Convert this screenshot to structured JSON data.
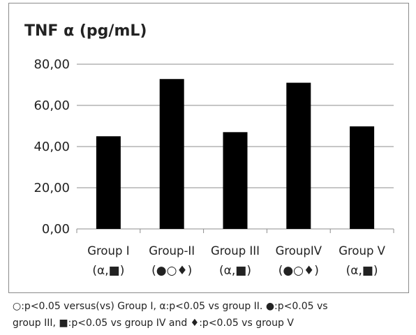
{
  "chart_data": {
    "type": "bar",
    "title": "TNF α (pg/mL)",
    "categories": [
      "Group I",
      "Group-II",
      "Group III",
      "GroupIV",
      "Group V"
    ],
    "significance": [
      "(α,■)",
      "(●○♦)",
      "(α,■)",
      "(●○♦)",
      "(α,■)"
    ],
    "values": [
      45.0,
      72.8,
      47.0,
      71.0,
      49.8
    ],
    "ylim": [
      0,
      80
    ],
    "yticks": [
      "0,00",
      "20,00",
      "40,00",
      "60,00",
      "80,00"
    ],
    "ytick_values": [
      0,
      20,
      40,
      60,
      80
    ],
    "grid": true,
    "bar_color": "#000000",
    "xlabel": "",
    "ylabel": ""
  },
  "caption": {
    "line1": "○:p<0.05 versus(vs) Group I, α:p<0.05 vs group II. ●:p<0.05 vs",
    "line2": "group III, ■:p<0.05 vs group IV and ♦:p<0.05 vs group V"
  }
}
